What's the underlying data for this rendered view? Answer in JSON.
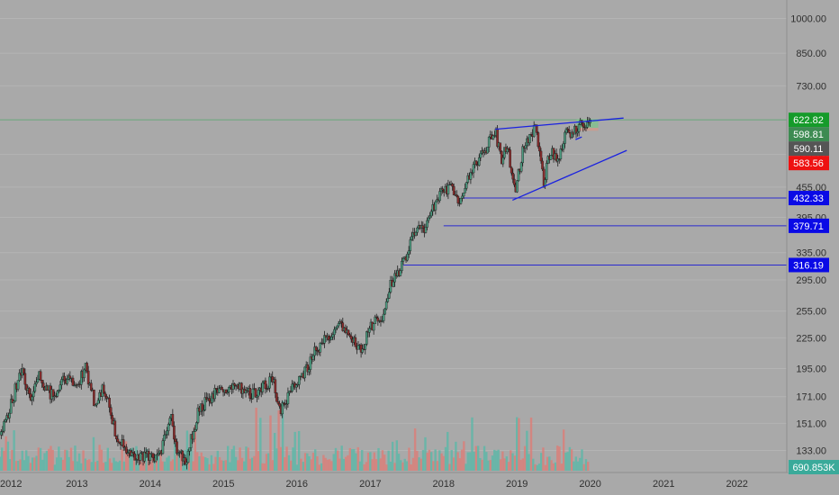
{
  "chart_data": {
    "type": "candlestick",
    "scale": "log",
    "ylim": [
      120,
      1090
    ],
    "xlim": [
      "2011-12-15",
      "2022-08-01"
    ],
    "colors": {
      "background": "#a9a9a9",
      "up": "#4c9a7f",
      "down": "#8a2c2c",
      "volume_up": "#5fb7a8",
      "volume_down": "#d9807a",
      "trendline": "#1a22e0",
      "hline": "#2a2ad0",
      "green_hline": "#5aa870",
      "axis_text": "#303030"
    },
    "y_ticks": [
      {
        "value": 1000,
        "label": "1000.00"
      },
      {
        "value": 850,
        "label": "850.00"
      },
      {
        "value": 730,
        "label": "730.00"
      },
      {
        "value": 530,
        "label": "530.00"
      },
      {
        "value": 455,
        "label": "455.00"
      },
      {
        "value": 395,
        "label": "395.00"
      },
      {
        "value": 335,
        "label": "335.00"
      },
      {
        "value": 295,
        "label": "295.00"
      },
      {
        "value": 255,
        "label": "255.00"
      },
      {
        "value": 225,
        "label": "225.00"
      },
      {
        "value": 195,
        "label": "195.00"
      },
      {
        "value": 171,
        "label": "171.00"
      },
      {
        "value": 151,
        "label": "151.00"
      },
      {
        "value": 133,
        "label": "133.00"
      }
    ],
    "x_ticks": [
      {
        "date": "2012-01-01",
        "label": "2012"
      },
      {
        "date": "2013-01-01",
        "label": "2013"
      },
      {
        "date": "2014-01-01",
        "label": "2014"
      },
      {
        "date": "2015-01-01",
        "label": "2015"
      },
      {
        "date": "2016-01-01",
        "label": "2016"
      },
      {
        "date": "2017-01-01",
        "label": "2017"
      },
      {
        "date": "2018-01-01",
        "label": "2018"
      },
      {
        "date": "2019-01-01",
        "label": "2019"
      },
      {
        "date": "2020-01-01",
        "label": "2020"
      },
      {
        "date": "2021-01-01",
        "label": "2021"
      },
      {
        "date": "2022-01-01",
        "label": "2022"
      }
    ],
    "price_path": [
      [
        "2011-12-15",
        143
      ],
      [
        "2012-02-15",
        168
      ],
      [
        "2012-04-01",
        196
      ],
      [
        "2012-05-15",
        170
      ],
      [
        "2012-07-01",
        188
      ],
      [
        "2012-09-01",
        172
      ],
      [
        "2012-11-01",
        186
      ],
      [
        "2013-01-01",
        178
      ],
      [
        "2013-02-15",
        196
      ],
      [
        "2013-04-01",
        165
      ],
      [
        "2013-05-15",
        178
      ],
      [
        "2013-07-15",
        144
      ],
      [
        "2013-09-01",
        136
      ],
      [
        "2013-11-01",
        128
      ],
      [
        "2013-12-15",
        132
      ],
      [
        "2014-02-01",
        127
      ],
      [
        "2014-03-15",
        140
      ],
      [
        "2014-04-15",
        158
      ],
      [
        "2014-05-15",
        132
      ],
      [
        "2014-07-01",
        128
      ],
      [
        "2014-09-01",
        162
      ],
      [
        "2014-11-01",
        171
      ],
      [
        "2015-01-01",
        178
      ],
      [
        "2015-03-15",
        180
      ],
      [
        "2015-05-15",
        174
      ],
      [
        "2015-07-01",
        176
      ],
      [
        "2015-09-01",
        186
      ],
      [
        "2015-10-15",
        160
      ],
      [
        "2015-12-01",
        178
      ],
      [
        "2016-02-01",
        190
      ],
      [
        "2016-04-01",
        210
      ],
      [
        "2016-06-01",
        225
      ],
      [
        "2016-08-01",
        240
      ],
      [
        "2016-10-01",
        225
      ],
      [
        "2016-11-15",
        212
      ],
      [
        "2017-01-01",
        235
      ],
      [
        "2017-03-01",
        250
      ],
      [
        "2017-04-15",
        290
      ],
      [
        "2017-06-15",
        318
      ],
      [
        "2017-08-15",
        370
      ],
      [
        "2017-10-01",
        380
      ],
      [
        "2017-12-01",
        430
      ],
      [
        "2018-02-01",
        460
      ],
      [
        "2018-03-15",
        420
      ],
      [
        "2018-05-01",
        480
      ],
      [
        "2018-07-01",
        520
      ],
      [
        "2018-09-15",
        595
      ],
      [
        "2018-10-15",
        520
      ],
      [
        "2018-11-15",
        560
      ],
      [
        "2018-12-20",
        445
      ],
      [
        "2019-02-01",
        540
      ],
      [
        "2019-04-01",
        600
      ],
      [
        "2019-05-15",
        470
      ],
      [
        "2019-06-15",
        540
      ],
      [
        "2019-08-01",
        520
      ],
      [
        "2019-09-01",
        580
      ],
      [
        "2019-10-15",
        598
      ],
      [
        "2020-01-01",
        615
      ]
    ],
    "volume_max": 1000000,
    "trendlines": [
      {
        "from": [
          "2018-09-15",
          596
        ],
        "to": [
          "2020-06-15",
          628
        ]
      },
      {
        "from": [
          "2018-12-10",
          428
        ],
        "to": [
          "2020-07-01",
          540
        ]
      },
      {
        "from": [
          "2019-10-20",
          568
        ],
        "to": [
          "2019-11-20",
          575
        ]
      }
    ],
    "hlines": [
      {
        "from": "2018-04-01",
        "value": 432.33
      },
      {
        "from": "2018-01-01",
        "value": 379.71
      },
      {
        "from": "2017-06-15",
        "value": 316.19
      }
    ],
    "green_hline": 622.82,
    "price_tags": [
      {
        "value": 622.82,
        "label": "622.82",
        "bg": "#159b2a",
        "fg": "#ffffff"
      },
      {
        "value": 598.81,
        "label": "598.81",
        "bg": "#3d8b52",
        "fg": "#ffffff"
      },
      {
        "value": 590.11,
        "label": "590.11",
        "bg": "#555555",
        "fg": "#ffffff"
      },
      {
        "value": 583.56,
        "label": "583.56",
        "bg": "#ee1111",
        "fg": "#ffffff"
      },
      {
        "value": 432.33,
        "label": "432.33",
        "bg": "#0a0ae6",
        "fg": "#ffffff"
      },
      {
        "value": 379.71,
        "label": "379.71",
        "bg": "#0a0ae6",
        "fg": "#ffffff"
      },
      {
        "value": 316.19,
        "label": "316.19",
        "bg": "#0a0ae6",
        "fg": "#ffffff"
      }
    ],
    "volume_tag": {
      "label": "690.853K",
      "bg": "#3aaa9a",
      "fg": "#ffffff"
    },
    "position_box": {
      "from": "2019-10-25",
      "to": "2020-02-10",
      "target": [
        600,
        625
      ],
      "stop": [
        592,
        600
      ]
    }
  }
}
